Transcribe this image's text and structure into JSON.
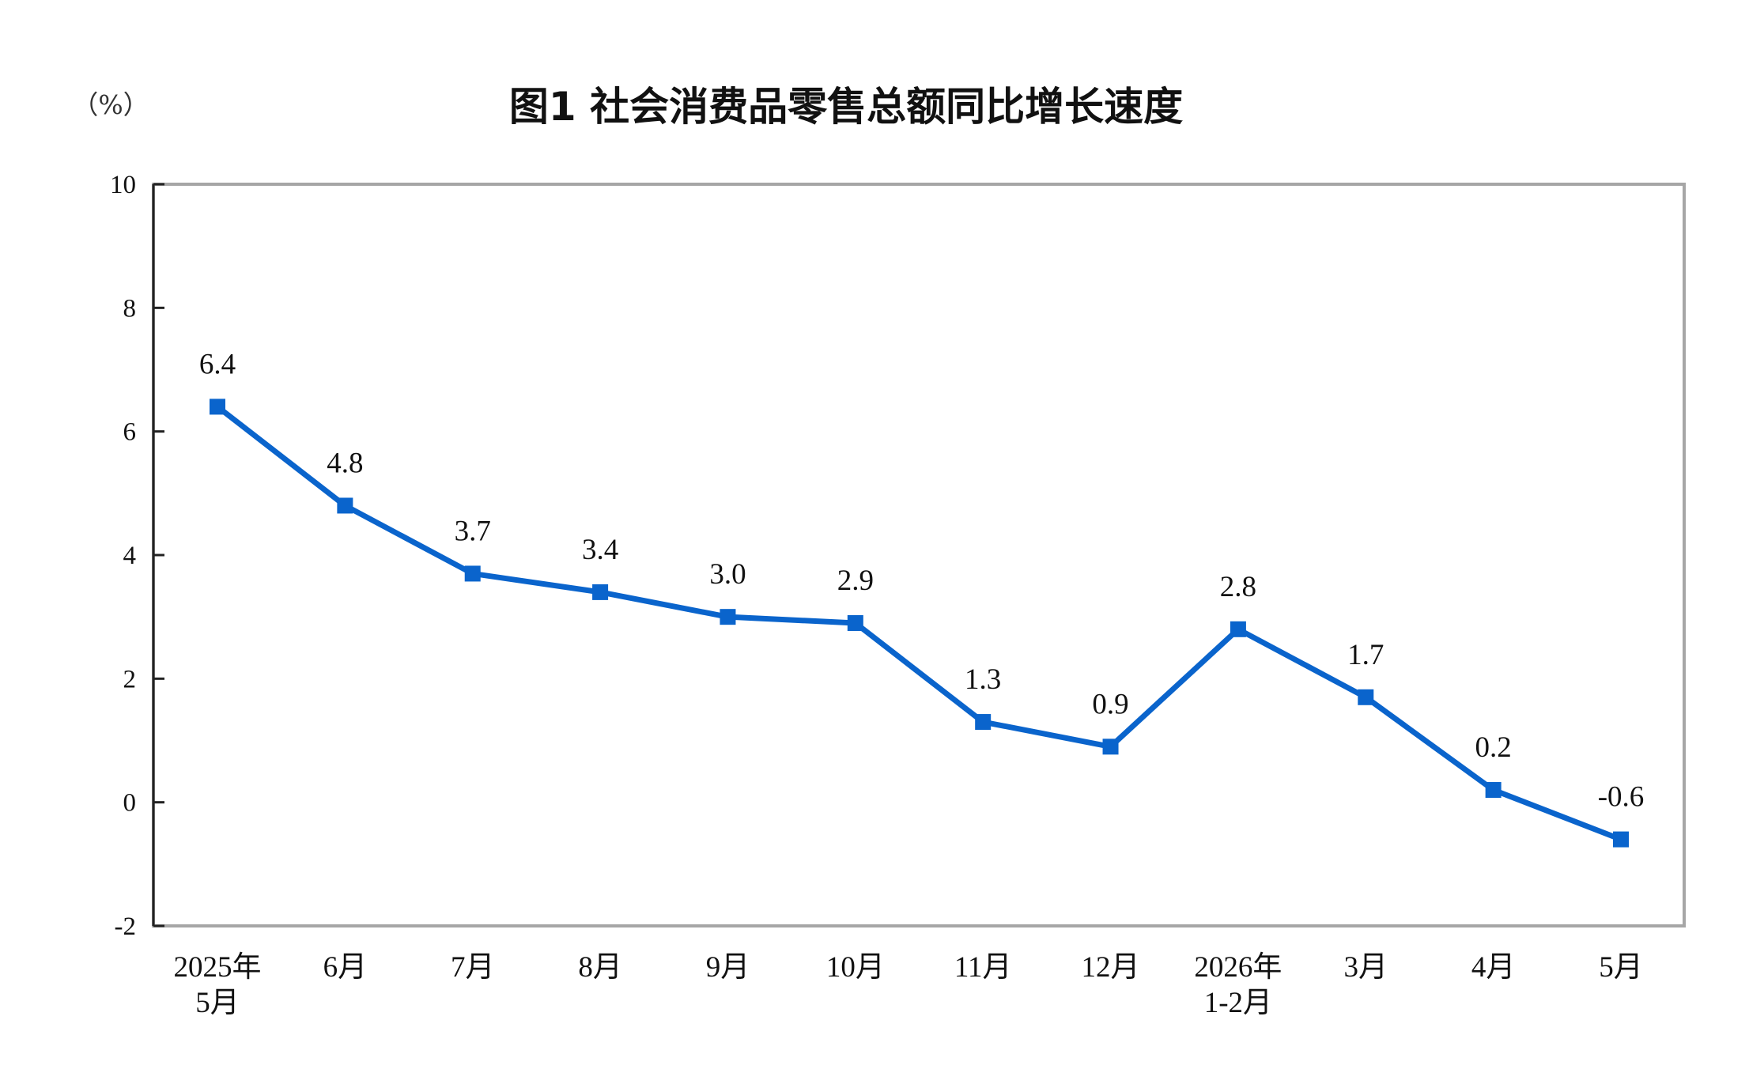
{
  "chart_data": {
    "type": "line",
    "title": "图1  社会消费品零售总额同比增长速度",
    "unit_label": "（%）",
    "xlabel": "",
    "ylabel": "",
    "categories": [
      [
        "2025年",
        "5月"
      ],
      [
        "6月"
      ],
      [
        "7月"
      ],
      [
        "8月"
      ],
      [
        "9月"
      ],
      [
        "10月"
      ],
      [
        "11月"
      ],
      [
        "12月"
      ],
      [
        "2026年",
        "1-2月"
      ],
      [
        "3月"
      ],
      [
        "4月"
      ],
      [
        "5月"
      ]
    ],
    "series": [
      {
        "values": [
          6.4,
          4.8,
          3.7,
          3.4,
          3.0,
          2.9,
          1.3,
          0.9,
          2.8,
          1.7,
          0.2,
          -0.6
        ],
        "labels": [
          "6.4",
          "4.8",
          "3.7",
          "3.4",
          "3.0",
          "2.9",
          "1.3",
          "0.9",
          "2.8",
          "1.7",
          "0.2",
          "-0.6"
        ],
        "color": "#0a64cc",
        "marker": "square"
      }
    ],
    "ylim": [
      -2,
      10
    ],
    "yticks": [
      "10",
      "8",
      "6",
      "4",
      "2",
      "0",
      "-2"
    ],
    "ytick_values": [
      10,
      8,
      6,
      4,
      2,
      0,
      -2
    ],
    "grid": false,
    "legend": "none",
    "frame_color": "#a6a6a6"
  }
}
